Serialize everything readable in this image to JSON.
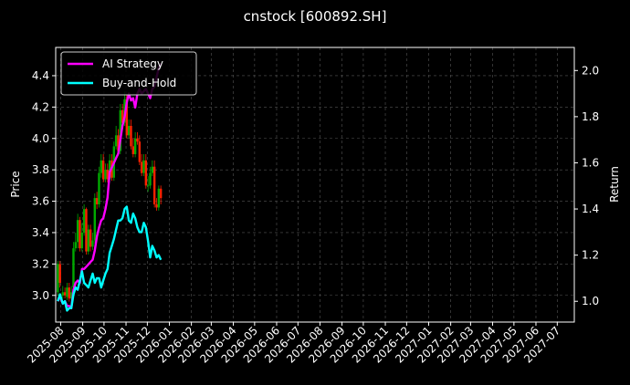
{
  "chart_data": {
    "type": "line",
    "title": "cnstock [600892.SH]",
    "xlabel": "",
    "ylabel": "Price",
    "y2label": "Return",
    "ylim": [
      2.83,
      4.58
    ],
    "y2lim": [
      0.91,
      2.1
    ],
    "xlim": [
      "2025-07-25",
      "2027-07-25"
    ],
    "yticks": [
      3.0,
      3.2,
      3.4,
      3.6,
      3.8,
      4.0,
      4.2,
      4.4
    ],
    "y2ticks": [
      1.0,
      1.2,
      1.4,
      1.6,
      1.8,
      2.0
    ],
    "xticks": [
      "2025-08",
      "2025-09",
      "2025-10",
      "2025-11",
      "2025-12",
      "2026-01",
      "2026-02",
      "2026-03",
      "2026-04",
      "2026-05",
      "2026-06",
      "2026-07",
      "2026-08",
      "2026-09",
      "2026-10",
      "2026-11",
      "2026-12",
      "2027-01",
      "2027-02",
      "2027-03",
      "2027-04",
      "2027-05",
      "2027-06",
      "2027-07"
    ],
    "grid": true,
    "legend_position": "top-left",
    "colors": {
      "background": "#000000",
      "ai": "#ff00ff",
      "bh": "#00ffff",
      "up": "#00aa00",
      "down": "#ff2200",
      "grid": "#555555"
    },
    "series": [
      {
        "name": "AI Strategy",
        "color": "#ff00ff",
        "axis": "right",
        "x": [
          "2025-07-28",
          "2025-07-31",
          "2025-08-04",
          "2025-08-07",
          "2025-08-10",
          "2025-08-13",
          "2025-08-16",
          "2025-08-19",
          "2025-08-22",
          "2025-08-25",
          "2025-08-28",
          "2025-08-31",
          "2025-09-03",
          "2025-09-06",
          "2025-09-09",
          "2025-09-12",
          "2025-09-15",
          "2025-09-18",
          "2025-09-21",
          "2025-09-24",
          "2025-09-27",
          "2025-09-30",
          "2025-10-03",
          "2025-10-06",
          "2025-10-09",
          "2025-10-12",
          "2025-10-15",
          "2025-10-18",
          "2025-10-21",
          "2025-10-24",
          "2025-10-27",
          "2025-10-30",
          "2025-11-02",
          "2025-11-05",
          "2025-11-08",
          "2025-11-11",
          "2025-11-14",
          "2025-11-17",
          "2025-11-20",
          "2025-11-23",
          "2025-11-26",
          "2025-11-29",
          "2025-12-02",
          "2025-12-05",
          "2025-12-08",
          "2025-12-11",
          "2025-12-14",
          "2025-12-17",
          "2025-12-20"
        ],
        "values": [
          1.0,
          1.02,
          0.99,
          1.0,
          0.98,
          0.98,
          0.97,
          1.05,
          1.08,
          1.09,
          1.08,
          1.14,
          1.14,
          1.15,
          1.16,
          1.17,
          1.18,
          1.22,
          1.28,
          1.32,
          1.35,
          1.36,
          1.4,
          1.45,
          1.56,
          1.58,
          1.6,
          1.62,
          1.64,
          1.7,
          1.76,
          1.8,
          1.86,
          1.9,
          1.87,
          1.88,
          1.84,
          1.9,
          1.92,
          1.9,
          1.91,
          1.92,
          1.9,
          1.88,
          1.92,
          1.93,
          1.97,
          2.01,
          2.03
        ]
      },
      {
        "name": "Buy-and-Hold",
        "color": "#00ffff",
        "axis": "right",
        "x": [
          "2025-07-28",
          "2025-07-31",
          "2025-08-04",
          "2025-08-07",
          "2025-08-10",
          "2025-08-13",
          "2025-08-16",
          "2025-08-19",
          "2025-08-22",
          "2025-08-25",
          "2025-08-28",
          "2025-08-31",
          "2025-09-03",
          "2025-09-06",
          "2025-09-09",
          "2025-09-12",
          "2025-09-15",
          "2025-09-18",
          "2025-09-21",
          "2025-09-24",
          "2025-09-27",
          "2025-09-30",
          "2025-10-03",
          "2025-10-06",
          "2025-10-09",
          "2025-10-12",
          "2025-10-15",
          "2025-10-18",
          "2025-10-21",
          "2025-10-24",
          "2025-10-27",
          "2025-10-30",
          "2025-11-02",
          "2025-11-05",
          "2025-11-08",
          "2025-11-11",
          "2025-11-14",
          "2025-11-17",
          "2025-11-20",
          "2025-11-23",
          "2025-11-26",
          "2025-11-29",
          "2025-12-02",
          "2025-12-05",
          "2025-12-08",
          "2025-12-11",
          "2025-12-14",
          "2025-12-17",
          "2025-12-20"
        ],
        "values": [
          1.0,
          1.03,
          0.99,
          1.0,
          0.96,
          0.97,
          0.97,
          1.03,
          1.06,
          1.05,
          1.09,
          1.13,
          1.08,
          1.07,
          1.06,
          1.09,
          1.12,
          1.08,
          1.1,
          1.1,
          1.06,
          1.09,
          1.12,
          1.14,
          1.21,
          1.24,
          1.27,
          1.31,
          1.35,
          1.35,
          1.36,
          1.4,
          1.41,
          1.35,
          1.34,
          1.38,
          1.36,
          1.32,
          1.3,
          1.3,
          1.34,
          1.32,
          1.26,
          1.19,
          1.24,
          1.22,
          1.19,
          1.2,
          1.18
        ]
      }
    ],
    "candles": {
      "x": [
        "2025-07-28",
        "2025-07-31",
        "2025-08-04",
        "2025-08-07",
        "2025-08-10",
        "2025-08-13",
        "2025-08-16",
        "2025-08-19",
        "2025-08-22",
        "2025-08-25",
        "2025-08-28",
        "2025-08-31",
        "2025-09-03",
        "2025-09-06",
        "2025-09-09",
        "2025-09-12",
        "2025-09-15",
        "2025-09-18",
        "2025-09-21",
        "2025-09-24",
        "2025-09-27",
        "2025-09-30",
        "2025-10-03",
        "2025-10-06",
        "2025-10-09",
        "2025-10-12",
        "2025-10-15",
        "2025-10-18",
        "2025-10-21",
        "2025-10-24",
        "2025-10-27",
        "2025-10-30",
        "2025-11-02",
        "2025-11-05",
        "2025-11-08",
        "2025-11-11",
        "2025-11-14",
        "2025-11-17",
        "2025-11-20",
        "2025-11-23",
        "2025-11-26",
        "2025-11-29",
        "2025-12-02",
        "2025-12-05",
        "2025-12-08",
        "2025-12-11",
        "2025-12-14",
        "2025-12-17",
        "2025-12-20"
      ],
      "open": [
        3.02,
        3.2,
        3.0,
        3.02,
        2.99,
        3.05,
        2.98,
        3.05,
        3.3,
        3.34,
        3.48,
        3.3,
        3.4,
        3.55,
        3.28,
        3.42,
        3.31,
        3.35,
        3.62,
        3.58,
        3.78,
        3.86,
        3.74,
        3.8,
        3.74,
        3.86,
        3.75,
        3.95,
        4.02,
        3.92,
        4.18,
        4.1,
        4.25,
        4.02,
        4.08,
        3.95,
        3.9,
        4.0,
        3.98,
        3.85,
        3.78,
        3.86,
        3.7,
        3.7,
        3.78,
        3.82,
        3.58,
        3.56,
        3.68
      ],
      "close": [
        3.2,
        3.08,
        3.02,
        3.0,
        3.05,
        2.98,
        3.02,
        3.3,
        3.34,
        3.48,
        3.3,
        3.4,
        3.55,
        3.28,
        3.42,
        3.31,
        3.35,
        3.62,
        3.58,
        3.78,
        3.86,
        3.74,
        3.8,
        3.74,
        3.86,
        3.75,
        3.95,
        4.02,
        3.92,
        4.18,
        4.1,
        4.25,
        4.02,
        4.08,
        3.95,
        3.9,
        4.0,
        3.98,
        3.85,
        3.78,
        3.86,
        3.7,
        3.7,
        3.78,
        3.82,
        3.58,
        3.56,
        3.68,
        3.62
      ],
      "high": [
        3.22,
        3.22,
        3.06,
        3.05,
        3.08,
        3.08,
        3.06,
        3.34,
        3.4,
        3.52,
        3.5,
        3.46,
        3.58,
        3.56,
        3.45,
        3.45,
        3.4,
        3.65,
        3.66,
        3.82,
        3.9,
        3.9,
        3.84,
        3.84,
        3.9,
        3.9,
        3.98,
        4.08,
        4.06,
        4.22,
        4.22,
        4.3,
        4.28,
        4.12,
        4.12,
        4.0,
        4.04,
        4.04,
        4.02,
        3.9,
        3.9,
        3.9,
        3.76,
        3.82,
        3.86,
        3.86,
        3.62,
        3.7,
        3.7
      ],
      "low": [
        3.0,
        3.05,
        2.98,
        2.98,
        2.97,
        2.96,
        2.97,
        3.02,
        3.28,
        3.3,
        3.28,
        3.28,
        3.38,
        3.26,
        3.26,
        3.28,
        3.29,
        3.33,
        3.55,
        3.56,
        3.75,
        3.72,
        3.72,
        3.72,
        3.72,
        3.73,
        3.73,
        3.93,
        3.9,
        3.9,
        4.08,
        4.08,
        4.0,
        4.0,
        3.93,
        3.88,
        3.88,
        3.96,
        3.83,
        3.76,
        3.76,
        3.68,
        3.66,
        3.68,
        3.76,
        3.56,
        3.54,
        3.54,
        3.58
      ]
    }
  },
  "legend": [
    {
      "label": "AI Strategy",
      "color": "#ff00ff"
    },
    {
      "label": "Buy-and-Hold",
      "color": "#00ffff"
    }
  ]
}
